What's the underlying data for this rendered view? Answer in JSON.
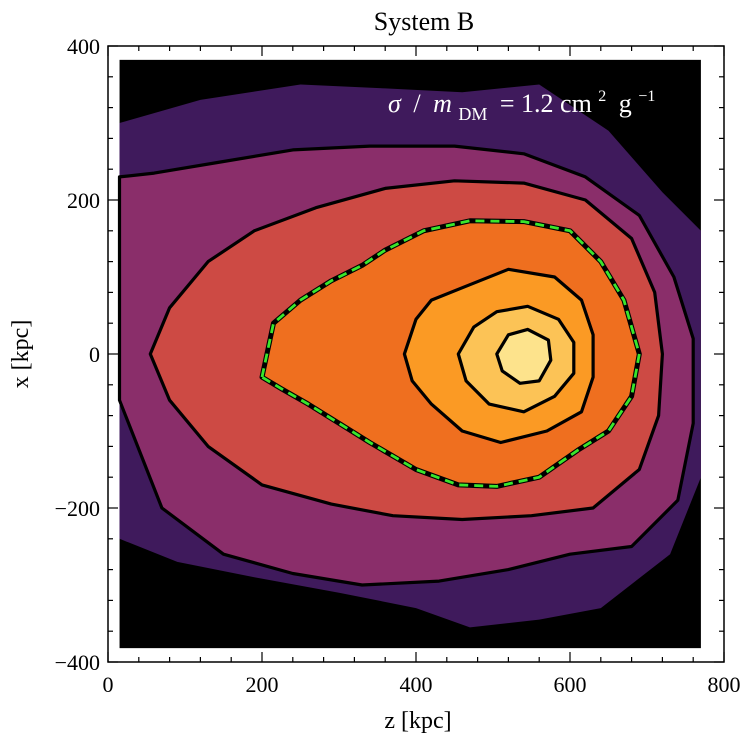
{
  "chart_data": {
    "type": "contour",
    "title": "System B",
    "xlabel": "z [kpc]",
    "ylabel": "x [kpc]",
    "xlim": [
      0,
      800
    ],
    "ylim": [
      -400,
      400
    ],
    "xticks": [
      "0",
      "200",
      "400",
      "600",
      "800"
    ],
    "yticks": [
      "400",
      "200",
      "0",
      "−200",
      "−400"
    ],
    "xtick_values": [
      0,
      200,
      400,
      600,
      800
    ],
    "ytick_values": [
      400,
      200,
      0,
      -200,
      -400
    ],
    "annotation": {
      "sigma": "σ",
      "slash": "/",
      "m": "m",
      "sub": "DM",
      "eq": "= 1.2 cm",
      "sup2": "2",
      "g": "g",
      "supm1": "−1"
    },
    "data_region": {
      "xmin": 15,
      "xmax": 770,
      "ymin": -382,
      "ymax": 382
    },
    "center": [
      545,
      0
    ],
    "background_color": "#000000",
    "levels": [
      {
        "name": "level-1",
        "fill": "#3f1a5c",
        "edge": "none",
        "points": [
          [
            15,
            300
          ],
          [
            120,
            330
          ],
          [
            250,
            350
          ],
          [
            360,
            345
          ],
          [
            460,
            340
          ],
          [
            560,
            350
          ],
          [
            650,
            290
          ],
          [
            720,
            210
          ],
          [
            770,
            160
          ],
          [
            770,
            -160
          ],
          [
            730,
            -260
          ],
          [
            640,
            -330
          ],
          [
            560,
            -345
          ],
          [
            470,
            -355
          ],
          [
            400,
            -330
          ],
          [
            300,
            -310
          ],
          [
            190,
            -290
          ],
          [
            90,
            -270
          ],
          [
            15,
            -240
          ]
        ]
      },
      {
        "name": "level-2",
        "fill": "#8a2e6a",
        "edge": "solid",
        "points": [
          [
            15,
            230
          ],
          [
            60,
            235
          ],
          [
            150,
            250
          ],
          [
            240,
            265
          ],
          [
            340,
            270
          ],
          [
            450,
            270
          ],
          [
            540,
            260
          ],
          [
            620,
            230
          ],
          [
            690,
            180
          ],
          [
            735,
            100
          ],
          [
            760,
            20
          ],
          [
            760,
            -90
          ],
          [
            740,
            -190
          ],
          [
            680,
            -250
          ],
          [
            600,
            -260
          ],
          [
            520,
            -280
          ],
          [
            430,
            -295
          ],
          [
            330,
            -300
          ],
          [
            240,
            -285
          ],
          [
            150,
            -260
          ],
          [
            70,
            -200
          ],
          [
            15,
            -60
          ],
          [
            15,
            60
          ]
        ]
      },
      {
        "name": "level-3",
        "fill": "#cd4a44",
        "edge": "solid",
        "points": [
          [
            55,
            0
          ],
          [
            80,
            60
          ],
          [
            130,
            120
          ],
          [
            190,
            160
          ],
          [
            270,
            190
          ],
          [
            360,
            215
          ],
          [
            450,
            225
          ],
          [
            540,
            222
          ],
          [
            620,
            200
          ],
          [
            680,
            150
          ],
          [
            710,
            80
          ],
          [
            720,
            0
          ],
          [
            715,
            -80
          ],
          [
            690,
            -150
          ],
          [
            630,
            -200
          ],
          [
            550,
            -210
          ],
          [
            460,
            -215
          ],
          [
            370,
            -210
          ],
          [
            290,
            -195
          ],
          [
            200,
            -170
          ],
          [
            130,
            -120
          ],
          [
            80,
            -60
          ]
        ]
      },
      {
        "name": "level-4",
        "fill": "#ef6f1f",
        "edge": "dashed-green",
        "points": [
          [
            200,
            -30
          ],
          [
            215,
            40
          ],
          [
            250,
            70
          ],
          [
            290,
            95
          ],
          [
            330,
            115
          ],
          [
            360,
            135
          ],
          [
            410,
            160
          ],
          [
            470,
            173
          ],
          [
            540,
            172
          ],
          [
            600,
            160
          ],
          [
            640,
            120
          ],
          [
            670,
            70
          ],
          [
            690,
            0
          ],
          [
            680,
            -55
          ],
          [
            650,
            -100
          ],
          [
            610,
            -125
          ],
          [
            560,
            -160
          ],
          [
            505,
            -172
          ],
          [
            455,
            -170
          ],
          [
            400,
            -150
          ],
          [
            340,
            -115
          ],
          [
            300,
            -90
          ],
          [
            260,
            -65
          ],
          [
            225,
            -45
          ]
        ]
      },
      {
        "name": "level-5",
        "fill": "#fb9a24",
        "edge": "solid",
        "points": [
          [
            385,
            0
          ],
          [
            400,
            45
          ],
          [
            420,
            70
          ],
          [
            470,
            90
          ],
          [
            520,
            110
          ],
          [
            580,
            100
          ],
          [
            615,
            70
          ],
          [
            630,
            25
          ],
          [
            630,
            -30
          ],
          [
            615,
            -75
          ],
          [
            570,
            -100
          ],
          [
            510,
            -115
          ],
          [
            460,
            -100
          ],
          [
            420,
            -65
          ],
          [
            395,
            -35
          ]
        ]
      },
      {
        "name": "level-6",
        "fill": "#fcc356",
        "edge": "solid",
        "points": [
          [
            455,
            0
          ],
          [
            475,
            35
          ],
          [
            505,
            55
          ],
          [
            545,
            62
          ],
          [
            585,
            45
          ],
          [
            605,
            15
          ],
          [
            605,
            -25
          ],
          [
            580,
            -55
          ],
          [
            540,
            -75
          ],
          [
            495,
            -65
          ],
          [
            465,
            -35
          ]
        ]
      },
      {
        "name": "level-7",
        "fill": "#fde38c",
        "edge": "solid",
        "points": [
          [
            505,
            0
          ],
          [
            520,
            25
          ],
          [
            545,
            32
          ],
          [
            572,
            18
          ],
          [
            575,
            -8
          ],
          [
            560,
            -35
          ],
          [
            535,
            -38
          ],
          [
            512,
            -22
          ]
        ]
      }
    ]
  }
}
